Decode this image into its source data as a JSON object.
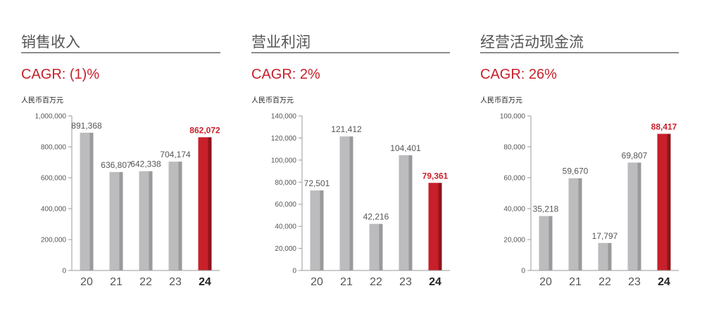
{
  "colors": {
    "bar_gray": "#bcbcbe",
    "bar_gray_shade": "#999a9c",
    "bar_red": "#c8202b",
    "bar_red_shade": "#8f141b",
    "axis": "#9a9a9a",
    "text_gray": "#555555",
    "accent_red": "#c8202b"
  },
  "panels": [
    {
      "title": "销售收入",
      "cagr": "CAGR: (1)%",
      "unit": "人民币百万元"
    },
    {
      "title": "营业利润",
      "cagr": "CAGR: 2%",
      "unit": "人民币百万元"
    },
    {
      "title": "经营活动现金流",
      "cagr": "CAGR: 26%",
      "unit": "人民币百万元"
    }
  ],
  "chart_data": [
    {
      "type": "bar",
      "title": "销售收入",
      "subtitle": "CAGR: (1)%",
      "ylabel": "人民币百万元",
      "categories": [
        "20",
        "21",
        "22",
        "23",
        "24"
      ],
      "values": [
        891368,
        636807,
        642338,
        704174,
        862072
      ],
      "value_labels": [
        "891,368",
        "636,807",
        "642,338",
        "704,174",
        "862,072"
      ],
      "highlight_index": 4,
      "ylim": [
        0,
        1000000
      ],
      "yticks": [
        0,
        200000,
        400000,
        600000,
        800000,
        1000000
      ],
      "ytick_labels": [
        "0",
        "200,000",
        "400,000",
        "600,000",
        "800,000",
        "1,000,000"
      ],
      "grid": false
    },
    {
      "type": "bar",
      "title": "营业利润",
      "subtitle": "CAGR: 2%",
      "ylabel": "人民币百万元",
      "categories": [
        "20",
        "21",
        "22",
        "23",
        "24"
      ],
      "values": [
        72501,
        121412,
        42216,
        104401,
        79361
      ],
      "value_labels": [
        "72,501",
        "121,412",
        "42,216",
        "104,401",
        "79,361"
      ],
      "highlight_index": 4,
      "ylim": [
        0,
        140000
      ],
      "yticks": [
        0,
        20000,
        40000,
        60000,
        80000,
        100000,
        120000,
        140000
      ],
      "ytick_labels": [
        "0",
        "20,000",
        "40,000",
        "60,000",
        "80,000",
        "100,000",
        "120,000",
        "140,000"
      ],
      "grid": false
    },
    {
      "type": "bar",
      "title": "经营活动现金流",
      "subtitle": "CAGR: 26%",
      "ylabel": "人民币百万元",
      "categories": [
        "20",
        "21",
        "22",
        "23",
        "24"
      ],
      "values": [
        35218,
        59670,
        17797,
        69807,
        88417
      ],
      "value_labels": [
        "35,218",
        "59,670",
        "17,797",
        "69,807",
        "88,417"
      ],
      "highlight_index": 4,
      "ylim": [
        0,
        100000
      ],
      "yticks": [
        0,
        20000,
        40000,
        60000,
        80000,
        100000
      ],
      "ytick_labels": [
        "0",
        "20,000",
        "40,000",
        "60,000",
        "80,000",
        "100,000"
      ],
      "grid": false
    }
  ]
}
